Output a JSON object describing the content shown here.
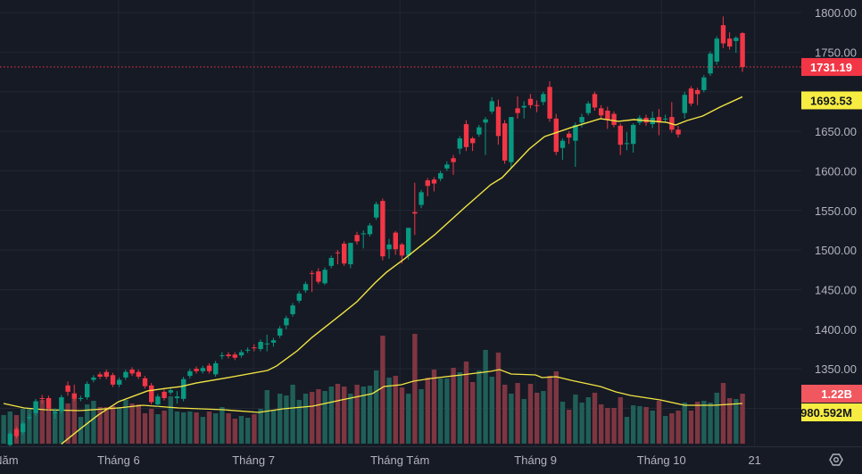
{
  "chart_data": {
    "type": "candlestick",
    "x_ticks": [
      {
        "label": "Năm",
        "index": 0.4
      },
      {
        "label": "Tháng 6",
        "index": 17.9
      },
      {
        "label": "Tháng 7",
        "index": 38.9
      },
      {
        "label": "Tháng Tám",
        "index": 61.7
      },
      {
        "label": "Tháng 9",
        "index": 82.8
      },
      {
        "label": "Tháng 10",
        "index": 102.4
      },
      {
        "label": "21",
        "index": 116.9
      }
    ],
    "y_ticks": [
      1800,
      1750,
      1650,
      1600,
      1550,
      1500,
      1450,
      1400,
      1350
    ],
    "grid_levels": [
      1800,
      1750,
      1700,
      1650,
      1600,
      1550,
      1500,
      1450,
      1400,
      1350,
      1300
    ],
    "ylim": [
      1247,
      1815
    ],
    "grid": true,
    "candles_ohlc": [
      [
        1235,
        1252,
        1230,
        1248
      ],
      [
        1254,
        1271,
        1251,
        1268
      ],
      [
        1274,
        1277,
        1262,
        1265
      ],
      [
        1270,
        1284,
        1267,
        1281
      ],
      [
        1288,
        1293,
        1285,
        1289
      ],
      [
        1294,
        1312,
        1291,
        1309
      ],
      [
        1313,
        1317,
        1306,
        1312
      ],
      [
        1313,
        1316,
        1297,
        1300
      ],
      [
        1294,
        1300,
        1287,
        1295
      ],
      [
        1297,
        1317,
        1294,
        1314
      ],
      [
        1329,
        1334,
        1316,
        1321
      ],
      [
        1319,
        1330,
        1309,
        1312
      ],
      [
        1312,
        1316,
        1309,
        1313
      ],
      [
        1314,
        1334,
        1311,
        1331
      ],
      [
        1336,
        1342,
        1333,
        1339
      ],
      [
        1343,
        1346,
        1337,
        1340
      ],
      [
        1346,
        1349,
        1337,
        1340
      ],
      [
        1342,
        1345,
        1327,
        1330
      ],
      [
        1330,
        1339,
        1327,
        1336
      ],
      [
        1339,
        1349,
        1336,
        1346
      ],
      [
        1349,
        1352,
        1341,
        1344
      ],
      [
        1346,
        1349,
        1337,
        1340
      ],
      [
        1338,
        1341,
        1325,
        1328
      ],
      [
        1329,
        1332,
        1305,
        1308
      ],
      [
        1305,
        1318,
        1302,
        1315
      ],
      [
        1321,
        1324,
        1310,
        1313
      ],
      [
        1320,
        1326,
        1317,
        1323
      ],
      [
        1313,
        1322,
        1306,
        1315
      ],
      [
        1312,
        1340,
        1309,
        1337
      ],
      [
        1341,
        1350,
        1338,
        1347
      ],
      [
        1350,
        1353,
        1344,
        1347
      ],
      [
        1347,
        1354,
        1344,
        1351
      ],
      [
        1354,
        1357,
        1344,
        1347
      ],
      [
        1343,
        1360,
        1340,
        1357
      ],
      [
        1366,
        1371,
        1362,
        1367
      ],
      [
        1368,
        1371,
        1363,
        1366
      ],
      [
        1368,
        1371,
        1361,
        1364
      ],
      [
        1367,
        1374,
        1364,
        1371
      ],
      [
        1373,
        1377,
        1370,
        1374
      ],
      [
        1377,
        1381,
        1372,
        1376
      ],
      [
        1375,
        1387,
        1372,
        1384
      ],
      [
        1381,
        1393,
        1372,
        1382
      ],
      [
        1383,
        1389,
        1378,
        1386
      ],
      [
        1392,
        1404,
        1389,
        1401
      ],
      [
        1405,
        1417,
        1400,
        1414
      ],
      [
        1419,
        1433,
        1416,
        1430
      ],
      [
        1436,
        1448,
        1433,
        1445
      ],
      [
        1449,
        1460,
        1446,
        1457
      ],
      [
        1471,
        1474,
        1447,
        1470
      ],
      [
        1473,
        1477,
        1457,
        1460
      ],
      [
        1458,
        1478,
        1456,
        1475
      ],
      [
        1480,
        1493,
        1477,
        1490
      ],
      [
        1497,
        1500,
        1482,
        1496
      ],
      [
        1508,
        1511,
        1480,
        1483
      ],
      [
        1482,
        1509,
        1477,
        1509
      ],
      [
        1519,
        1523,
        1507,
        1511
      ],
      [
        1520,
        1525,
        1502,
        1521
      ],
      [
        1520,
        1534,
        1517,
        1531
      ],
      [
        1541,
        1561,
        1538,
        1558
      ],
      [
        1562,
        1565,
        1487,
        1492
      ],
      [
        1501,
        1514,
        1489,
        1507
      ],
      [
        1522,
        1524,
        1494,
        1501
      ],
      [
        1507,
        1509,
        1483,
        1493
      ],
      [
        1493,
        1528,
        1488,
        1528
      ],
      [
        1548,
        1585,
        1519,
        1546
      ],
      [
        1557,
        1576,
        1553,
        1573
      ],
      [
        1588,
        1591,
        1568,
        1581
      ],
      [
        1589,
        1592,
        1574,
        1584
      ],
      [
        1590,
        1600,
        1587,
        1597
      ],
      [
        1603,
        1612,
        1600,
        1608
      ],
      [
        1616,
        1620,
        1595,
        1611
      ],
      [
        1628,
        1644,
        1621,
        1641
      ],
      [
        1659,
        1664,
        1625,
        1630
      ],
      [
        1641,
        1643,
        1625,
        1635
      ],
      [
        1646,
        1658,
        1643,
        1655
      ],
      [
        1661,
        1668,
        1620,
        1665
      ],
      [
        1675,
        1693,
        1672,
        1688
      ],
      [
        1681,
        1690,
        1633,
        1644
      ],
      [
        1660,
        1664,
        1609,
        1613
      ],
      [
        1611,
        1668,
        1604,
        1668
      ],
      [
        1679,
        1694,
        1666,
        1673
      ],
      [
        1680,
        1688,
        1666,
        1682
      ],
      [
        1691,
        1697,
        1679,
        1683
      ],
      [
        1683,
        1689,
        1674,
        1682
      ],
      [
        1687,
        1700,
        1683,
        1697
      ],
      [
        1706,
        1713,
        1662,
        1666
      ],
      [
        1666,
        1672,
        1620,
        1624
      ],
      [
        1629,
        1641,
        1614,
        1638
      ],
      [
        1647,
        1650,
        1634,
        1642
      ],
      [
        1638,
        1661,
        1605,
        1658
      ],
      [
        1661,
        1672,
        1655,
        1668
      ],
      [
        1673,
        1688,
        1670,
        1685
      ],
      [
        1697,
        1700,
        1676,
        1680
      ],
      [
        1679,
        1683,
        1665,
        1670
      ],
      [
        1676,
        1681,
        1653,
        1665
      ],
      [
        1672,
        1675,
        1655,
        1658
      ],
      [
        1657,
        1660,
        1620,
        1633
      ],
      [
        1634,
        1649,
        1626,
        1635
      ],
      [
        1634,
        1660,
        1623,
        1658
      ],
      [
        1661,
        1670,
        1658,
        1667
      ],
      [
        1667,
        1671,
        1657,
        1661
      ],
      [
        1659,
        1675,
        1654,
        1667
      ],
      [
        1668,
        1678,
        1645,
        1661
      ],
      [
        1665,
        1671,
        1661,
        1666
      ],
      [
        1668,
        1687,
        1648,
        1652
      ],
      [
        1652,
        1657,
        1642,
        1646
      ],
      [
        1673,
        1700,
        1666,
        1696
      ],
      [
        1704,
        1707,
        1682,
        1685
      ],
      [
        1702,
        1705,
        1683,
        1697
      ],
      [
        1702,
        1721,
        1699,
        1718
      ],
      [
        1723,
        1751,
        1720,
        1748
      ],
      [
        1738,
        1770,
        1734,
        1767
      ],
      [
        1784,
        1795,
        1755,
        1761
      ],
      [
        1767,
        1775,
        1753,
        1757
      ],
      [
        1764,
        1770,
        1749,
        1768
      ],
      [
        1774,
        1775,
        1725,
        1731.19
      ]
    ],
    "volume_millions": [
      698,
      785,
      698,
      850,
      872,
      1025,
      1068,
      1112,
      828,
      872,
      981,
      1090,
      654,
      959,
      1046,
      894,
      894,
      916,
      894,
      1068,
      981,
      959,
      741,
      850,
      719,
      807,
      1155,
      785,
      763,
      785,
      763,
      654,
      785,
      741,
      894,
      741,
      610,
      676,
      632,
      719,
      850,
      1308,
      828,
      1221,
      1177,
      1439,
      1068,
      1221,
      1264,
      1330,
      1286,
      1395,
      1461,
      1395,
      1221,
      1439,
      1395,
      1417,
      1788,
      2638,
      1613,
      1657,
      1373,
      1221,
      2681,
      1330,
      1613,
      1809,
      1591,
      1591,
      1853,
      1744,
      2006,
      1504,
      1788,
      2289,
      1635,
      2224,
      1439,
      1221,
      1482,
      1090,
      1461,
      1243,
      1286,
      1657,
      1766,
      1025,
      828,
      1199,
      1003,
      1134,
      1243,
      959,
      872,
      872,
      1134,
      654,
      937,
      916,
      894,
      807,
      1046,
      676,
      741,
      807,
      1003,
      807,
      1025,
      1046,
      1003,
      1243,
      1482,
      1112,
      1090,
      1220
    ],
    "price_ma": [
      [
        9,
        1255
      ],
      [
        12,
        1274.6
      ],
      [
        14.7,
        1291.5
      ],
      [
        17.9,
        1308.5
      ],
      [
        22.4,
        1322
      ],
      [
        25.4,
        1325.4
      ],
      [
        27.6,
        1327.6
      ],
      [
        30,
        1332.1
      ],
      [
        34.2,
        1337.8
      ],
      [
        41.1,
        1347.9
      ],
      [
        42.5,
        1353.6
      ],
      [
        45.7,
        1372.7
      ],
      [
        48,
        1389.6
      ],
      [
        52.6,
        1419
      ],
      [
        55,
        1434.7
      ],
      [
        57.8,
        1458.4
      ],
      [
        59.6,
        1472
      ],
      [
        62.4,
        1488.9
      ],
      [
        67.1,
        1519.3
      ],
      [
        71.7,
        1553.1
      ],
      [
        75.8,
        1582.4
      ],
      [
        77.6,
        1591.4
      ],
      [
        81.8,
        1627.5
      ],
      [
        84.2,
        1643.3
      ],
      [
        88.3,
        1654.6
      ],
      [
        92.9,
        1665.9
      ],
      [
        95.7,
        1662.5
      ],
      [
        98.1,
        1664.7
      ],
      [
        103.2,
        1661.3
      ],
      [
        104.6,
        1657.9
      ],
      [
        106.4,
        1663.6
      ],
      [
        108.8,
        1669.2
      ],
      [
        111.5,
        1680.5
      ],
      [
        115,
        1693.53
      ]
    ],
    "volume_ma": [
      [
        0,
        981
      ],
      [
        3.2,
        872
      ],
      [
        6.4,
        828
      ],
      [
        11.9,
        807
      ],
      [
        17.9,
        872
      ],
      [
        21.7,
        937
      ],
      [
        27.2,
        872
      ],
      [
        34.2,
        828
      ],
      [
        39.7,
        763
      ],
      [
        43.5,
        850
      ],
      [
        48.1,
        916
      ],
      [
        52.6,
        1068
      ],
      [
        57.4,
        1221
      ],
      [
        59.2,
        1395
      ],
      [
        61.9,
        1439
      ],
      [
        63.8,
        1526
      ],
      [
        66.5,
        1591
      ],
      [
        71.3,
        1679
      ],
      [
        75.8,
        1766
      ],
      [
        77.2,
        1809
      ],
      [
        79,
        1700
      ],
      [
        82.8,
        1679
      ],
      [
        83.8,
        1613
      ],
      [
        86,
        1635
      ],
      [
        88.3,
        1548
      ],
      [
        92.9,
        1395
      ],
      [
        95.3,
        1264
      ],
      [
        97.6,
        1177
      ],
      [
        102.2,
        1068
      ],
      [
        106,
        937
      ],
      [
        110.6,
        937
      ],
      [
        115,
        980.592
      ]
    ],
    "last_price": 1731.19,
    "last_price_label": "1731.19",
    "price_ma_label": "1693.53",
    "last_volume_label": "1.22B",
    "volume_ma_label": "980.592M",
    "colors": {
      "up": "#089981",
      "down": "#f23645",
      "volume_up": "#1f5f58",
      "volume_down": "#7e3641",
      "ma": "#f2e543",
      "background": "#161a25",
      "grid": "#232733"
    }
  },
  "toolbar": {
    "settings_icon": "hexagon-settings-icon"
  }
}
